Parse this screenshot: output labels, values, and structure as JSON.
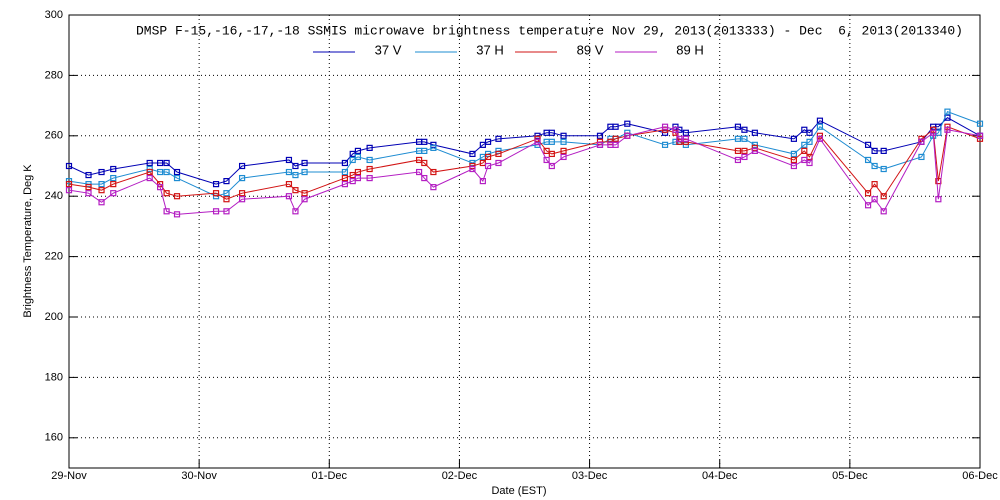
{
  "chart_data": {
    "type": "line",
    "title": "DMSP F-15,-16,-17,-18 SSMIS microwave brightness temperature Nov 29, 2013(2013333) - Dec  6, 2013(2013340)",
    "xlabel": "Date (EST)",
    "ylabel": "Brightness Temperature, Deg K",
    "x": [
      0,
      0.15,
      0.25,
      0.34,
      0.62,
      0.7,
      0.75,
      0.83,
      1.13,
      1.21,
      1.33,
      1.69,
      1.74,
      1.81,
      2.12,
      2.18,
      2.22,
      2.31,
      2.69,
      2.73,
      2.8,
      3.1,
      3.18,
      3.22,
      3.3,
      3.6,
      3.67,
      3.71,
      3.8,
      4.08,
      4.16,
      4.2,
      4.29,
      4.58,
      4.66,
      4.69,
      4.74,
      5.14,
      5.19,
      5.27,
      5.57,
      5.65,
      5.69,
      5.77,
      6.14,
      6.19,
      6.26,
      6.55,
      6.64,
      6.68,
      6.75,
      7.0
    ],
    "series": [
      {
        "name": "37 V",
        "color": "#0000b4",
        "values": [
          250,
          247,
          248,
          249,
          251,
          251,
          251,
          248,
          244,
          245,
          250,
          252,
          250,
          251,
          251,
          254,
          255,
          256,
          258,
          258,
          257,
          254,
          257,
          258,
          259,
          260,
          261,
          261,
          260,
          260,
          263,
          263,
          264,
          261,
          263,
          262,
          261,
          263,
          262,
          261,
          259,
          262,
          261,
          265,
          257,
          255,
          255,
          258,
          263,
          263,
          266,
          260
        ]
      },
      {
        "name": "37 H",
        "color": "#1e8cd2",
        "values": [
          245,
          244,
          244,
          246,
          249,
          248,
          248,
          246,
          240,
          241,
          246,
          248,
          247,
          248,
          248,
          252,
          253,
          252,
          255,
          255,
          256,
          251,
          253,
          254,
          255,
          257,
          258,
          258,
          258,
          257,
          259,
          259,
          261,
          257,
          258,
          258,
          257,
          259,
          259,
          257,
          254,
          257,
          258,
          263,
          252,
          250,
          249,
          253,
          260,
          261,
          268,
          264
        ]
      },
      {
        "name": "89 V",
        "color": "#d21414",
        "values": [
          244,
          243,
          242,
          244,
          248,
          244,
          241,
          240,
          241,
          239,
          241,
          244,
          242,
          241,
          246,
          247,
          248,
          249,
          252,
          251,
          248,
          250,
          251,
          253,
          254,
          259,
          255,
          254,
          255,
          258,
          258,
          259,
          260,
          262,
          261,
          258,
          258,
          255,
          255,
          256,
          252,
          255,
          253,
          260,
          241,
          244,
          240,
          259,
          262,
          245,
          263,
          259
        ]
      },
      {
        "name": "89 H",
        "color": "#b41ec3",
        "values": [
          242,
          241,
          238,
          241,
          246,
          243,
          235,
          234,
          235,
          235,
          239,
          240,
          235,
          239,
          244,
          245,
          246,
          246,
          248,
          246,
          243,
          249,
          245,
          250,
          251,
          258,
          252,
          250,
          253,
          257,
          257,
          257,
          260,
          263,
          262,
          259,
          259,
          252,
          253,
          255,
          250,
          252,
          251,
          259,
          237,
          239,
          235,
          258,
          261,
          239,
          262,
          260
        ]
      }
    ],
    "xlim": [
      0,
      7
    ],
    "xticks": [
      {
        "value": 0,
        "label": "29-Nov"
      },
      {
        "value": 1,
        "label": "30-Nov"
      },
      {
        "value": 2,
        "label": "01-Dec"
      },
      {
        "value": 3,
        "label": "02-Dec"
      },
      {
        "value": 4,
        "label": "03-Dec"
      },
      {
        "value": 5,
        "label": "04-Dec"
      },
      {
        "value": 6,
        "label": "05-Dec"
      },
      {
        "value": 7,
        "label": "06-Dec"
      }
    ],
    "ylim": [
      150,
      300
    ],
    "yticks": [
      160,
      180,
      200,
      220,
      240,
      260,
      280,
      300
    ],
    "grid": true
  }
}
